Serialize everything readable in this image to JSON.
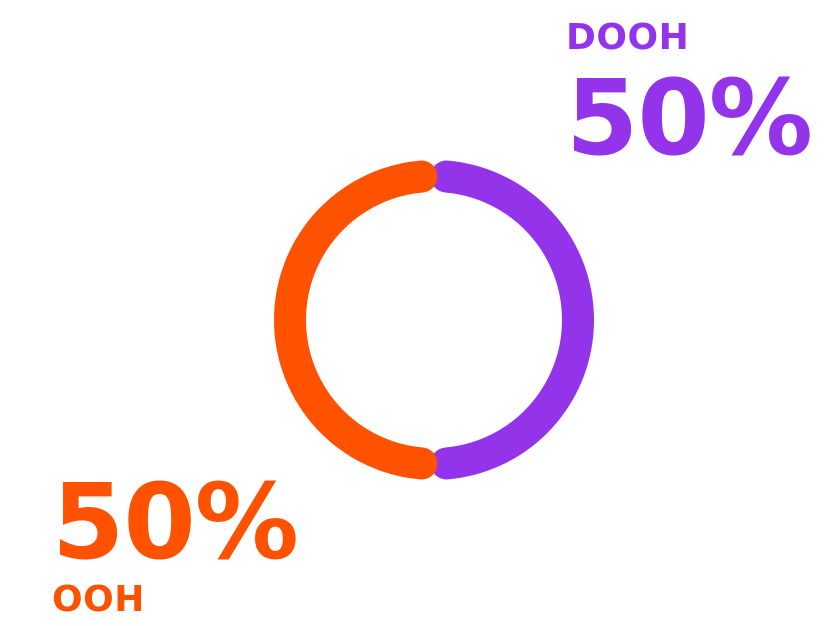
{
  "chart_data": {
    "type": "pie",
    "style": "donut",
    "slices": [
      {
        "name": "DOOH",
        "value": 50,
        "label": "50%",
        "color": "#9333EA"
      },
      {
        "name": "OOH",
        "value": 50,
        "label": "50%",
        "color": "#FF5200"
      }
    ],
    "track_color": "#E5E5E5"
  }
}
